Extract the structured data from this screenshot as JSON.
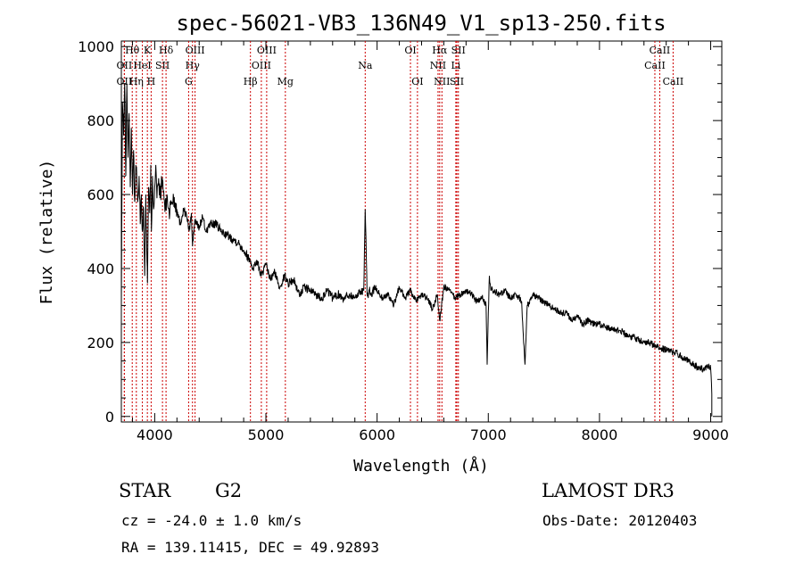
{
  "chart_data": {
    "type": "line",
    "title": "spec-56021-VB3_136N49_V1_sp13-250.fits",
    "xlabel": "Wavelength (Å)",
    "ylabel": "Flux (relative)",
    "xlim": [
      3700,
      9100
    ],
    "ylim": [
      -15,
      1015
    ],
    "x_ticks": [
      "4000",
      "5000",
      "6000",
      "7000",
      "8000",
      "9000"
    ],
    "y_ticks": [
      "0",
      "200",
      "400",
      "600",
      "800",
      "1000"
    ],
    "series": [
      {
        "name": "spectrum",
        "x": [
          3700,
          3710,
          3720,
          3730,
          3740,
          3750,
          3760,
          3770,
          3780,
          3790,
          3800,
          3810,
          3820,
          3830,
          3840,
          3850,
          3860,
          3870,
          3880,
          3890,
          3900,
          3910,
          3920,
          3930,
          3935,
          3945,
          3955,
          3965,
          3970,
          3980,
          3990,
          4000,
          4010,
          4020,
          4030,
          4050,
          4070,
          4090,
          4101,
          4110,
          4130,
          4150,
          4170,
          4200,
          4230,
          4260,
          4290,
          4310,
          4330,
          4340,
          4360,
          4380,
          4400,
          4430,
          4460,
          4500,
          4550,
          4600,
          4650,
          4700,
          4750,
          4800,
          4861,
          4880,
          4920,
          4960,
          5000,
          5040,
          5080,
          5120,
          5170,
          5200,
          5250,
          5300,
          5350,
          5400,
          5450,
          5500,
          5550,
          5600,
          5650,
          5700,
          5750,
          5800,
          5850,
          5880,
          5893,
          5900,
          5910,
          5920,
          5930,
          5950,
          5980,
          6000,
          6050,
          6100,
          6150,
          6200,
          6250,
          6300,
          6350,
          6400,
          6450,
          6500,
          6540,
          6563,
          6580,
          6600,
          6650,
          6700,
          6750,
          6800,
          6850,
          6900,
          6950,
          6980,
          6990,
          7000,
          7010,
          7020,
          7050,
          7100,
          7150,
          7200,
          7250,
          7300,
          7330,
          7350,
          7400,
          7450,
          7500,
          7550,
          7600,
          7650,
          7700,
          7750,
          7800,
          7850,
          7900,
          7950,
          8000,
          8050,
          8100,
          8150,
          8200,
          8250,
          8300,
          8350,
          8400,
          8450,
          8500,
          8550,
          8600,
          8650,
          8700,
          8750,
          8800,
          8850,
          8900,
          8950,
          8980,
          9000,
          9010
        ],
        "values": [
          300,
          850,
          760,
          900,
          650,
          900,
          700,
          820,
          620,
          780,
          600,
          720,
          580,
          680,
          640,
          590,
          650,
          520,
          600,
          500,
          560,
          380,
          600,
          420,
          360,
          620,
          550,
          680,
          500,
          650,
          560,
          620,
          680,
          590,
          630,
          600,
          640,
          570,
          560,
          600,
          550,
          580,
          590,
          560,
          520,
          560,
          540,
          500,
          550,
          460,
          530,
          520,
          510,
          540,
          500,
          520,
          520,
          500,
          490,
          480,
          470,
          450,
          420,
          400,
          420,
          380,
          410,
          370,
          390,
          350,
          380,
          360,
          370,
          330,
          350,
          340,
          330,
          320,
          340,
          320,
          330,
          320,
          330,
          320,
          340,
          340,
          560,
          480,
          330,
          320,
          340,
          330,
          350,
          340,
          320,
          330,
          300,
          350,
          320,
          340,
          310,
          330,
          320,
          290,
          330,
          260,
          300,
          350,
          340,
          320,
          330,
          340,
          330,
          310,
          320,
          300,
          140,
          280,
          380,
          350,
          340,
          330,
          340,
          320,
          330,
          310,
          140,
          300,
          330,
          320,
          310,
          300,
          290,
          280,
          280,
          260,
          270,
          250,
          260,
          250,
          250,
          240,
          240,
          235,
          230,
          220,
          215,
          210,
          200,
          200,
          190,
          185,
          180,
          175,
          170,
          160,
          150,
          140,
          130,
          130,
          140,
          130,
          60
        ]
      }
    ],
    "lines": [
      {
        "label": "OII",
        "x": 3727,
        "row": 2
      },
      {
        "label": "OII",
        "x": 3727,
        "row": 1
      },
      {
        "label": "Hθ",
        "x": 3798,
        "row": 0
      },
      {
        "label": "Hη",
        "x": 3835,
        "row": 2
      },
      {
        "label": "HeI",
        "x": 3889,
        "row": 1
      },
      {
        "label": "K",
        "x": 3934,
        "row": 0
      },
      {
        "label": "H",
        "x": 3968,
        "row": 2
      },
      {
        "label": "SII",
        "x": 4070,
        "row": 1
      },
      {
        "label": "Hδ",
        "x": 4102,
        "row": 0
      },
      {
        "label": "G",
        "x": 4305,
        "row": 2
      },
      {
        "label": "Hγ",
        "x": 4340,
        "row": 1
      },
      {
        "label": "OIII",
        "x": 4363,
        "row": 0
      },
      {
        "label": "Hβ",
        "x": 4861,
        "row": 2
      },
      {
        "label": "OIII",
        "x": 4959,
        "row": 1
      },
      {
        "label": "OIII",
        "x": 5007,
        "row": 0
      },
      {
        "label": "Mg",
        "x": 5175,
        "row": 2
      },
      {
        "label": "Na",
        "x": 5893,
        "row": 1
      },
      {
        "label": "OI",
        "x": 6300,
        "row": 0
      },
      {
        "label": "OI",
        "x": 6363,
        "row": 2
      },
      {
        "label": "NII",
        "x": 6548,
        "row": 1
      },
      {
        "label": "Hα",
        "x": 6563,
        "row": 0
      },
      {
        "label": "NII",
        "x": 6583,
        "row": 2
      },
      {
        "label": "Li",
        "x": 6708,
        "row": 1
      },
      {
        "label": "SII",
        "x": 6717,
        "row": 2
      },
      {
        "label": "SII",
        "x": 6731,
        "row": 0
      },
      {
        "label": "CaII",
        "x": 8498,
        "row": 1
      },
      {
        "label": "CaII",
        "x": 8542,
        "row": 0
      },
      {
        "label": "CaII",
        "x": 8662,
        "row": 2
      }
    ]
  },
  "info": {
    "object_class": "STAR",
    "subclass": "G2",
    "survey": "LAMOST DR3",
    "cz": "cz = -24.0 ± 1.0 km/s",
    "obs_date": "Obs-Date: 20120403",
    "coords": "RA = 139.11415, DEC =  49.92893"
  },
  "colors": {
    "axis": "#000000",
    "spectrum": "#000000",
    "marker": "#cc0000",
    "background": "#ffffff"
  }
}
